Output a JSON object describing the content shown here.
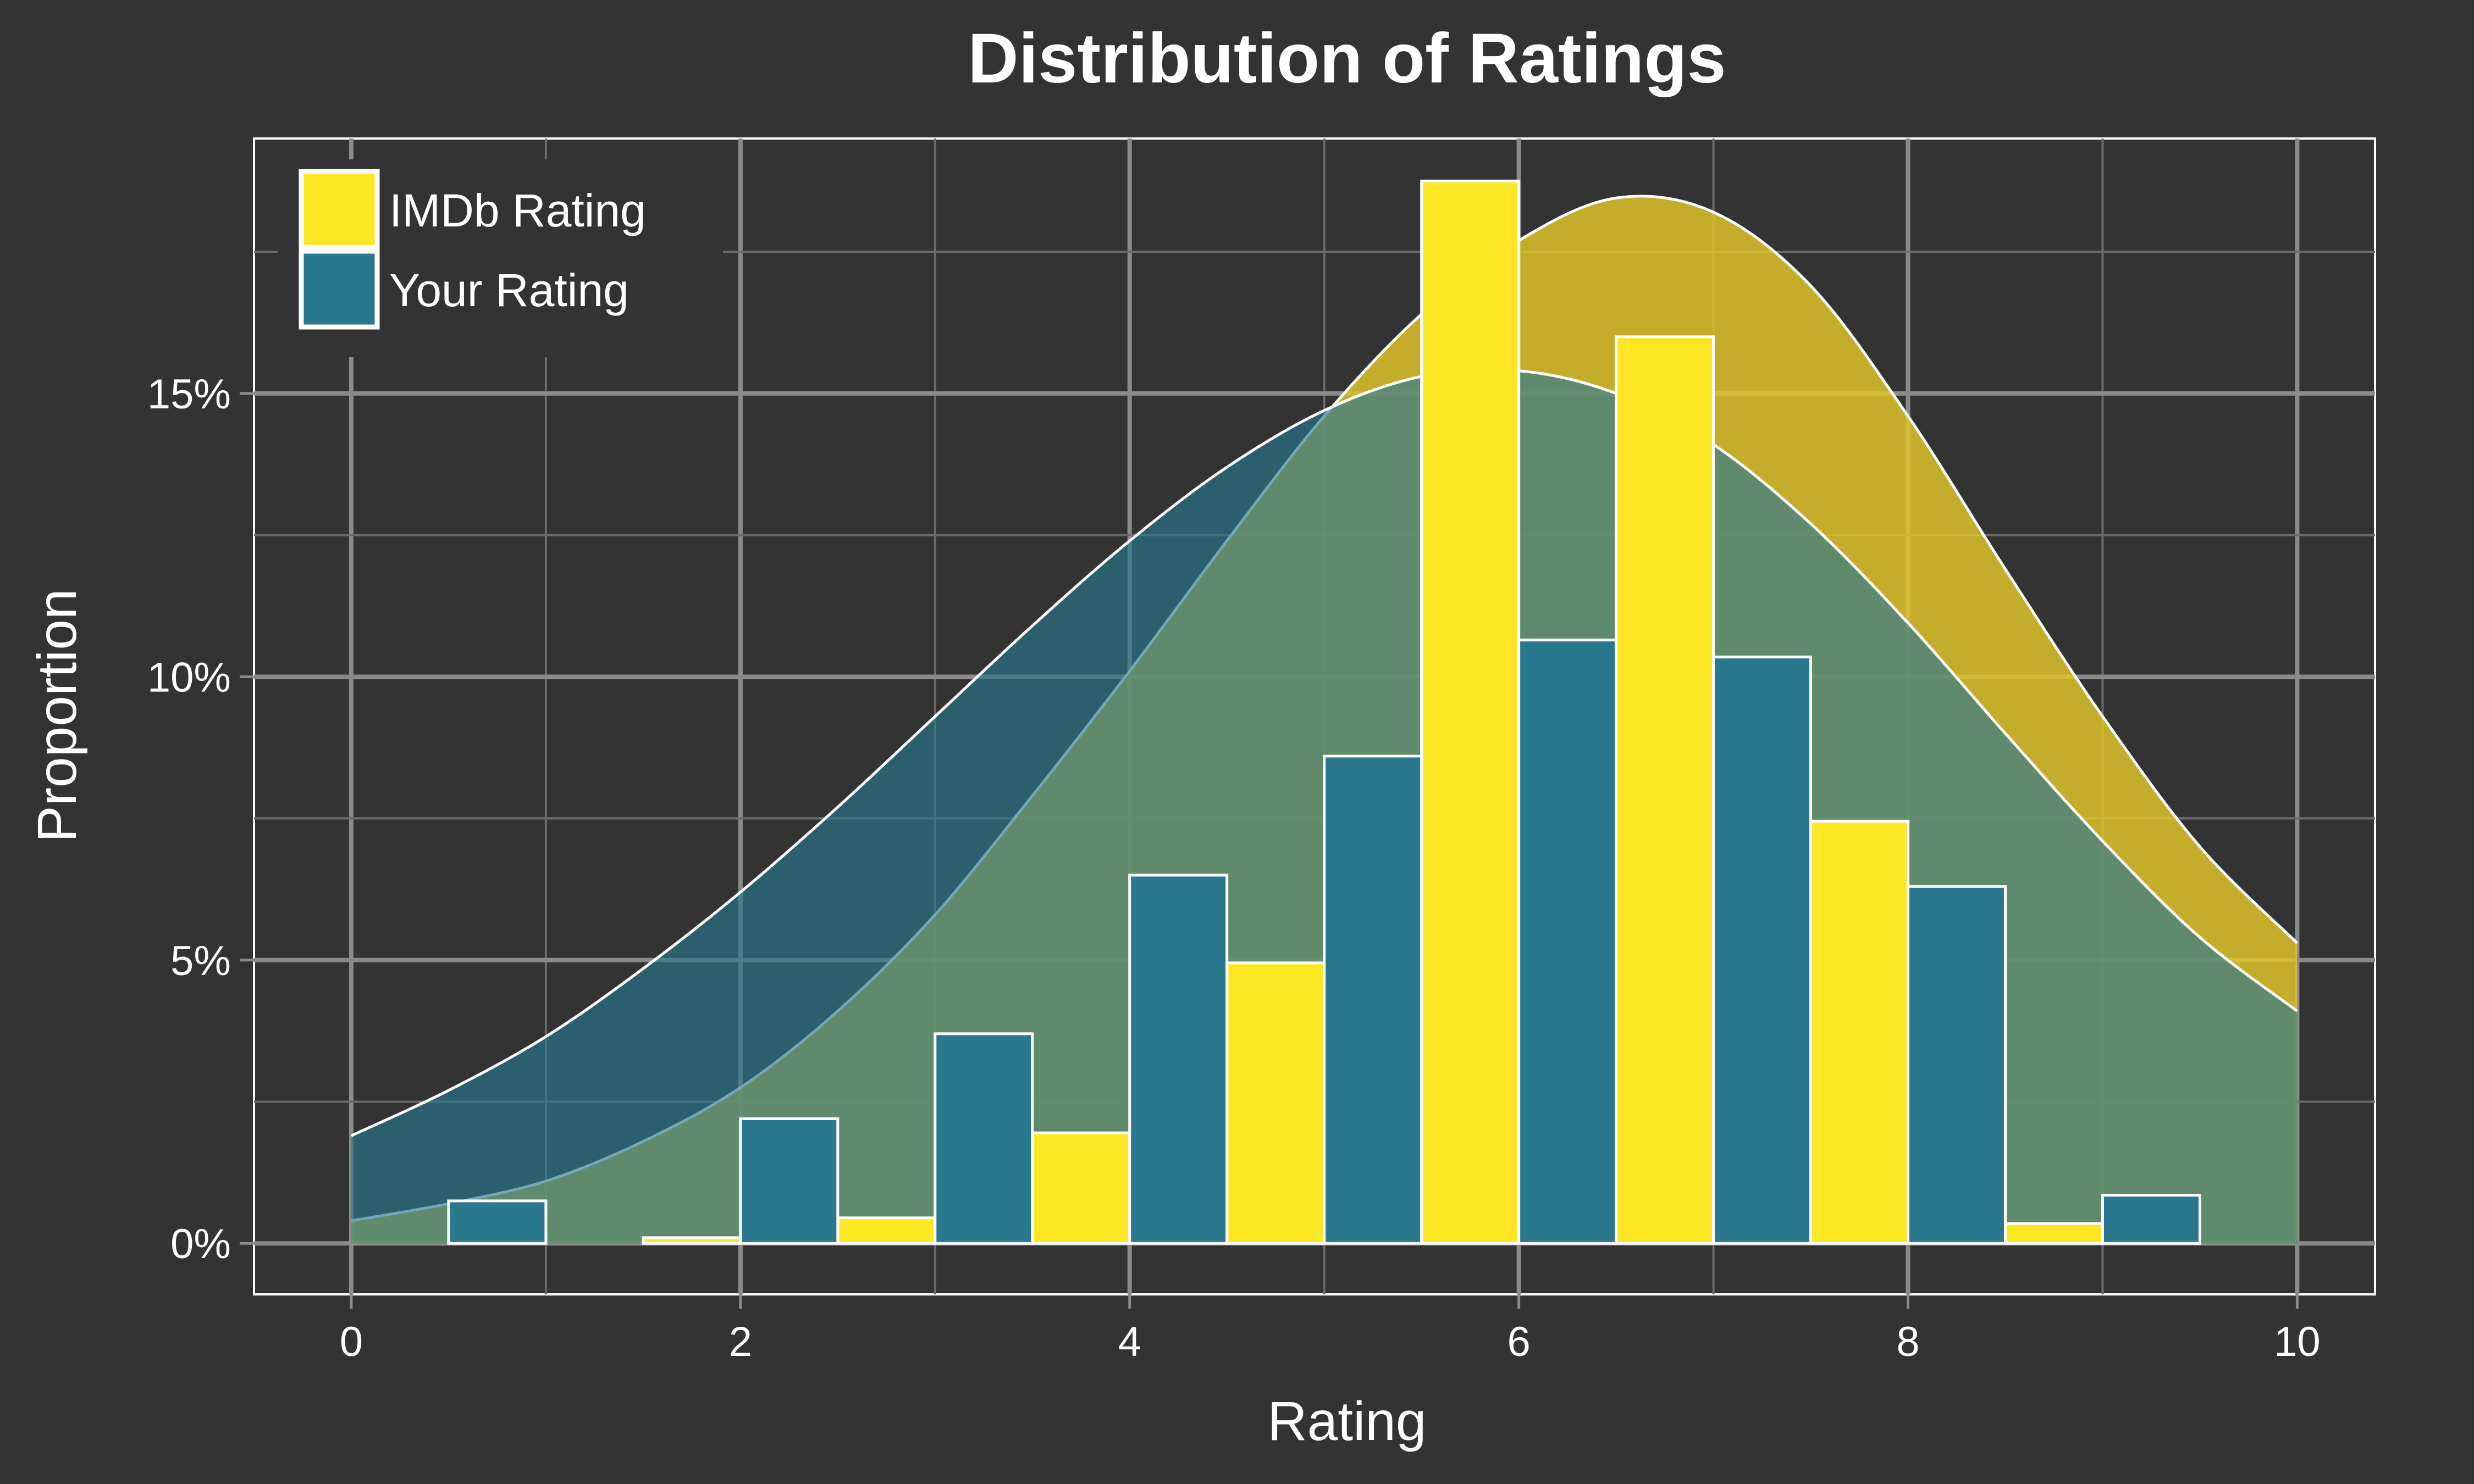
{
  "chart_data": {
    "type": "bar",
    "title": "Distribution of Ratings",
    "xlabel": "Rating",
    "ylabel": "Proportion",
    "xlim": [
      -0.5,
      10.4
    ],
    "ylim": [
      -0.9,
      19.5
    ],
    "x_ticks": [
      0,
      2,
      4,
      6,
      8,
      10
    ],
    "x_tick_labels": [
      "0",
      "2",
      "4",
      "6",
      "8",
      "10"
    ],
    "y_ticks": [
      0,
      5,
      10,
      15
    ],
    "y_tick_labels": [
      "0%",
      "5%",
      "10%",
      "15%"
    ],
    "grid": true,
    "legend_position": "top-left",
    "series": [
      {
        "name": "IMDb Rating",
        "color": "#FDE725",
        "bins": [
          [
            0.5,
            1
          ],
          [
            1.5,
            2
          ],
          [
            2.5,
            3
          ],
          [
            3.5,
            4
          ],
          [
            4.5,
            5
          ],
          [
            5.5,
            6
          ],
          [
            6.5,
            7
          ],
          [
            7.5,
            8
          ],
          [
            8.5,
            9
          ]
        ],
        "values": [
          0.0,
          0.1,
          0.45,
          1.95,
          4.95,
          18.75,
          16.0,
          7.45,
          0.35
        ],
        "density_color": "#DDC32A",
        "density_opacity": 0.85,
        "density_x": [
          0,
          0.5,
          1,
          1.5,
          2,
          2.5,
          3,
          3.5,
          4,
          4.5,
          5,
          5.5,
          6,
          6.5,
          7,
          7.5,
          8,
          8.5,
          9,
          9.5,
          10
        ],
        "density_y": [
          0.4,
          0.7,
          1.1,
          1.8,
          2.75,
          4.1,
          5.8,
          7.9,
          10.1,
          12.4,
          14.6,
          16.4,
          17.7,
          18.45,
          18.2,
          16.9,
          14.6,
          11.9,
          9.3,
          7.0,
          5.3
        ]
      },
      {
        "name": "Your Rating",
        "color": "#2A788E",
        "bins": [
          [
            0.5,
            1
          ],
          [
            2,
            2.5
          ],
          [
            3,
            3.5
          ],
          [
            4,
            4.5
          ],
          [
            5,
            5.5
          ],
          [
            6,
            6.5
          ],
          [
            7,
            7.5
          ],
          [
            8,
            8.5
          ],
          [
            9,
            9.5
          ]
        ],
        "values": [
          0.75,
          2.2,
          3.7,
          6.5,
          8.6,
          10.65,
          10.35,
          6.3,
          0.85
        ],
        "density_color": "#2A788E",
        "density_opacity": 0.65,
        "density_x": [
          0,
          0.5,
          1,
          1.5,
          2,
          2.5,
          3,
          3.5,
          4,
          4.5,
          5,
          5.5,
          6,
          6.5,
          7,
          7.5,
          8,
          8.5,
          9,
          9.5,
          10
        ],
        "density_y": [
          1.9,
          2.7,
          3.65,
          4.85,
          6.2,
          7.7,
          9.3,
          10.9,
          12.4,
          13.7,
          14.7,
          15.3,
          15.4,
          15.0,
          14.1,
          12.7,
          10.95,
          9.0,
          7.1,
          5.4,
          4.1
        ]
      }
    ]
  }
}
